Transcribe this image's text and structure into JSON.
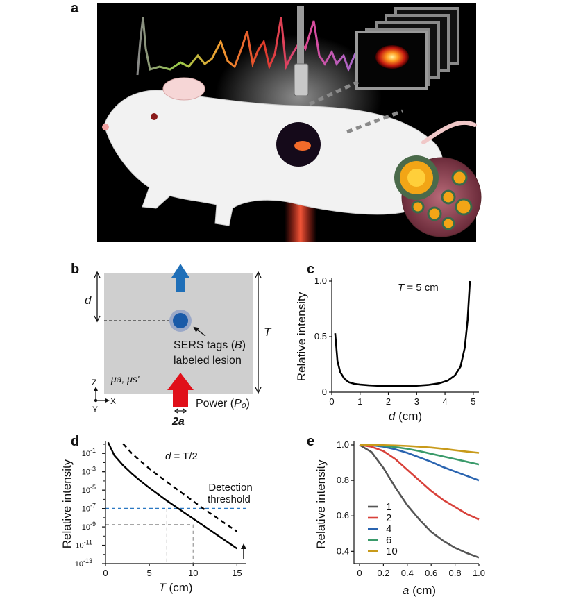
{
  "panels": {
    "a": "a",
    "b": "b",
    "c": "c",
    "d": "d",
    "e": "e"
  },
  "panel_b": {
    "d_label": "d",
    "T_label": "T",
    "tags_line1_pre": "SERS tags (",
    "tags_line1_var": "B",
    "tags_line1_post": ")",
    "tags_line2": "labeled lesion",
    "mu_label": "μa, μs′",
    "axis_z": "Z",
    "axis_x": "X",
    "axis_y": "Y",
    "power_pre": "Power (",
    "power_var": "P₀",
    "power_post": ")",
    "width_label": "2a",
    "colors": {
      "up_arrow": "#1f6fb8",
      "laser_arrow": "#e0101a",
      "lesion": "#1a5aa8",
      "tissue": "#cfcfcf"
    }
  },
  "chart_data": [
    {
      "panel": "c",
      "type": "line",
      "annotation_var": "T",
      "annotation_rest": " = 5 cm",
      "xlabel": "d",
      "xunit": " (cm)",
      "ylabel": "Relative intensity",
      "xlim": [
        0,
        5.2
      ],
      "ylim": [
        0,
        1.0
      ],
      "xticks": [
        0,
        1,
        2,
        3,
        4,
        5
      ],
      "yticks": [
        0,
        0.5,
        1.0
      ],
      "ytick_labels": [
        "0",
        "0.5",
        "1.0"
      ],
      "series": [
        {
          "color": "#000000",
          "x": [
            0.12,
            0.2,
            0.3,
            0.45,
            0.6,
            0.8,
            1.0,
            1.3,
            1.6,
            2.0,
            2.5,
            3.0,
            3.4,
            3.8,
            4.1,
            4.35,
            4.55,
            4.7,
            4.8,
            4.88
          ],
          "y": [
            0.53,
            0.28,
            0.18,
            0.12,
            0.09,
            0.075,
            0.068,
            0.062,
            0.058,
            0.056,
            0.056,
            0.058,
            0.065,
            0.08,
            0.105,
            0.15,
            0.23,
            0.4,
            0.65,
            1.0
          ]
        }
      ]
    },
    {
      "panel": "d",
      "type": "line",
      "annotation_pre": "d",
      "annotation_rest": " = T/2",
      "xlabel": "T",
      "xunit": " (cm)",
      "ylabel": "Relative intensity",
      "yscale": "log",
      "xlim": [
        0,
        16
      ],
      "ylim_exp": [
        -13,
        0
      ],
      "xticks": [
        0,
        5,
        10,
        15
      ],
      "ytick_exps": [
        -1,
        -3,
        -5,
        -7,
        -9,
        -11,
        -13
      ],
      "threshold_label_1": "Detection",
      "threshold_label_2": "threshold",
      "threshold_exp": -7,
      "colors": {
        "threshold": "#2a78c2",
        "guides": "#999999"
      },
      "series": [
        {
          "style": "solid",
          "color": "#000000",
          "x": [
            0.3,
            1,
            2,
            3,
            4,
            5,
            6,
            7,
            8,
            9,
            10,
            11,
            12,
            13,
            14,
            15
          ],
          "y_exp": [
            0.2,
            -1.2,
            -2.3,
            -3.2,
            -4.0,
            -4.75,
            -5.45,
            -6.15,
            -6.8,
            -7.45,
            -8.1,
            -8.75,
            -9.4,
            -10.05,
            -10.7,
            -11.35
          ]
        },
        {
          "style": "dashed",
          "color": "#000000",
          "x": [
            2.0,
            3,
            4,
            5,
            6,
            7,
            8,
            9,
            10,
            11,
            12,
            13,
            14,
            15
          ],
          "y_exp": [
            0.05,
            -1.0,
            -1.85,
            -2.65,
            -3.4,
            -4.1,
            -4.8,
            -5.5,
            -6.2,
            -6.9,
            -7.55,
            -8.2,
            -8.85,
            -9.5
          ]
        }
      ],
      "guides": [
        {
          "x": 7,
          "y_exp": -7
        },
        {
          "x": 10,
          "y_exp": -8.75
        }
      ]
    },
    {
      "panel": "e",
      "type": "line",
      "xlabel": "a",
      "xunit": " (cm)",
      "ylabel": "Relative intensity",
      "xlim": [
        0,
        1.0
      ],
      "ylim": [
        0.37,
        1.0
      ],
      "xticks": [
        0,
        0.2,
        0.4,
        0.6,
        0.8,
        1.0
      ],
      "xtick_labels": [
        "0",
        "0.2",
        "0.4",
        "0.6",
        "0.8",
        "1.0"
      ],
      "yticks": [
        0.4,
        0.6,
        0.8,
        1.0
      ],
      "ytick_labels": [
        "0.4",
        "0.6",
        "0.8",
        "1.0"
      ],
      "series": [
        {
          "name": "1",
          "color": "#555555",
          "x": [
            0,
            0.1,
            0.2,
            0.3,
            0.4,
            0.5,
            0.6,
            0.7,
            0.8,
            0.9,
            1.0
          ],
          "y": [
            1.0,
            0.96,
            0.87,
            0.76,
            0.66,
            0.58,
            0.51,
            0.46,
            0.42,
            0.39,
            0.365
          ]
        },
        {
          "name": "2",
          "color": "#d8413a",
          "x": [
            0,
            0.1,
            0.2,
            0.3,
            0.4,
            0.5,
            0.6,
            0.7,
            0.8,
            0.9,
            1.0
          ],
          "y": [
            1.0,
            0.99,
            0.965,
            0.92,
            0.86,
            0.8,
            0.74,
            0.69,
            0.65,
            0.61,
            0.58
          ]
        },
        {
          "name": "4",
          "color": "#2a64b0",
          "x": [
            0,
            0.1,
            0.2,
            0.3,
            0.4,
            0.5,
            0.6,
            0.7,
            0.8,
            0.9,
            1.0
          ],
          "y": [
            1.0,
            0.998,
            0.99,
            0.975,
            0.955,
            0.93,
            0.905,
            0.875,
            0.85,
            0.825,
            0.8
          ]
        },
        {
          "name": "6",
          "color": "#3a9a6a",
          "x": [
            0,
            0.1,
            0.2,
            0.3,
            0.4,
            0.5,
            0.6,
            0.7,
            0.8,
            0.9,
            1.0
          ],
          "y": [
            1.0,
            0.999,
            0.995,
            0.988,
            0.978,
            0.965,
            0.95,
            0.935,
            0.92,
            0.905,
            0.89
          ]
        },
        {
          "name": "10",
          "color": "#c89a1a",
          "x": [
            0,
            0.1,
            0.2,
            0.3,
            0.4,
            0.5,
            0.6,
            0.7,
            0.8,
            0.9,
            1.0
          ],
          "y": [
            1.0,
            1.0,
            0.999,
            0.997,
            0.994,
            0.99,
            0.985,
            0.978,
            0.97,
            0.962,
            0.955
          ]
        }
      ]
    }
  ]
}
